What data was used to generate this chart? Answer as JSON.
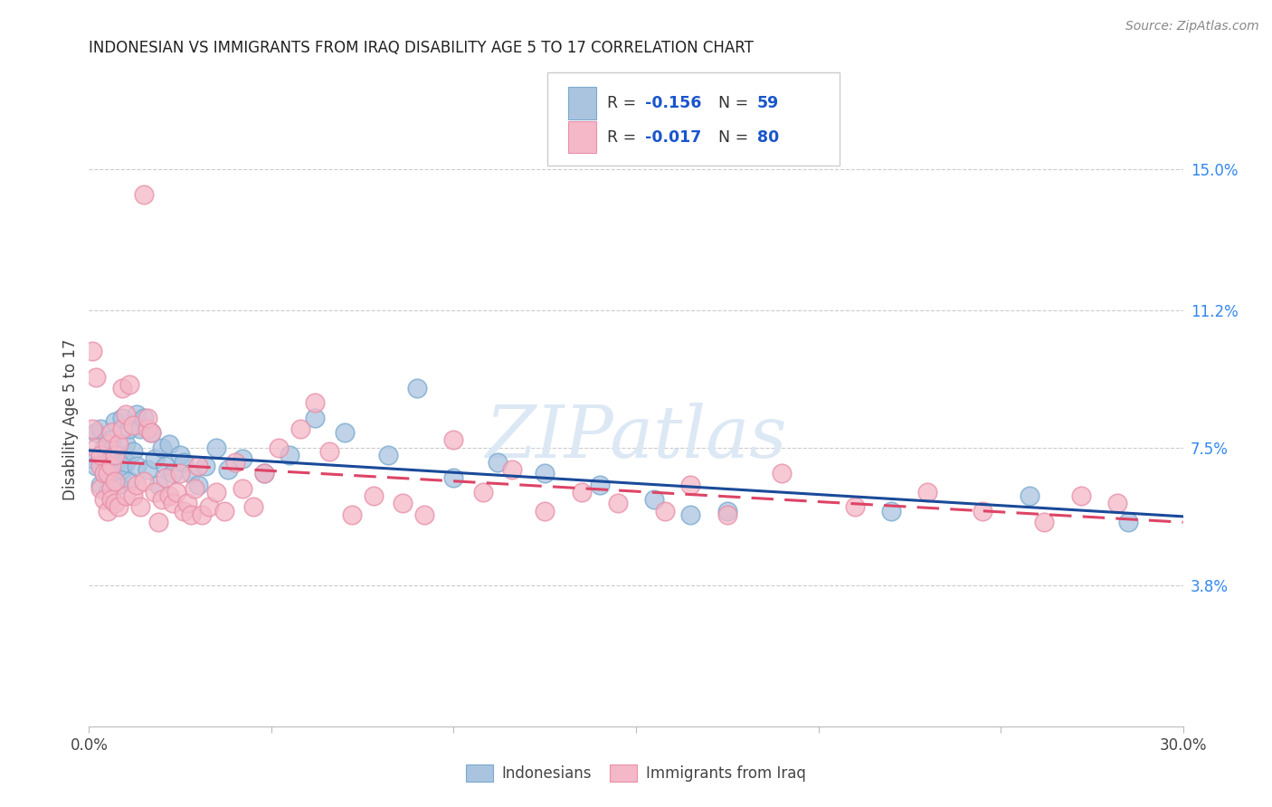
{
  "title": "INDONESIAN VS IMMIGRANTS FROM IRAQ DISABILITY AGE 5 TO 17 CORRELATION CHART",
  "source": "Source: ZipAtlas.com",
  "ylabel": "Disability Age 5 to 17",
  "xlim": [
    0.0,
    0.3
  ],
  "ylim": [
    0.0,
    0.165
  ],
  "xticks": [
    0.0,
    0.05,
    0.1,
    0.15,
    0.2,
    0.25,
    0.3
  ],
  "xticklabels": [
    "0.0%",
    "",
    "",
    "",
    "",
    "",
    "30.0%"
  ],
  "ytick_positions": [
    0.038,
    0.075,
    0.112,
    0.15
  ],
  "ytick_labels": [
    "3.8%",
    "7.5%",
    "11.2%",
    "15.0%"
  ],
  "legend_labels_bottom": [
    "Indonesians",
    "Immigrants from Iraq"
  ],
  "indonesian_color": "#aac4e0",
  "iraq_color": "#f4b8c8",
  "indonesian_edge_color": "#7aaacf",
  "iraq_edge_color": "#e890a8",
  "indonesian_line_color": "#1a4a99",
  "iraq_line_color": "#dd4466",
  "watermark_text": "ZIPatlas",
  "legend_r1": "R = ",
  "legend_v1": "-0.156",
  "legend_n1_label": "N = ",
  "legend_n1": "59",
  "legend_r2": "R = ",
  "legend_v2": "-0.017",
  "legend_n2_label": "N = ",
  "legend_n2": "80",
  "legend_text_color": "#333333",
  "legend_blue_color": "#1a55cc",
  "ytick_color": "#3388ee",
  "indonesian_scatter": [
    [
      0.001,
      0.072
    ],
    [
      0.002,
      0.07
    ],
    [
      0.002,
      0.079
    ],
    [
      0.003,
      0.065
    ],
    [
      0.003,
      0.08
    ],
    [
      0.004,
      0.075
    ],
    [
      0.004,
      0.068
    ],
    [
      0.005,
      0.074
    ],
    [
      0.005,
      0.063
    ],
    [
      0.006,
      0.072
    ],
    [
      0.006,
      0.068
    ],
    [
      0.006,
      0.077
    ],
    [
      0.007,
      0.082
    ],
    [
      0.007,
      0.07
    ],
    [
      0.008,
      0.065
    ],
    [
      0.008,
      0.073
    ],
    [
      0.009,
      0.069
    ],
    [
      0.009,
      0.083
    ],
    [
      0.01,
      0.071
    ],
    [
      0.01,
      0.076
    ],
    [
      0.011,
      0.08
    ],
    [
      0.011,
      0.066
    ],
    [
      0.012,
      0.074
    ],
    [
      0.013,
      0.07
    ],
    [
      0.013,
      0.084
    ],
    [
      0.014,
      0.08
    ],
    [
      0.015,
      0.083
    ],
    [
      0.016,
      0.069
    ],
    [
      0.017,
      0.079
    ],
    [
      0.018,
      0.072
    ],
    [
      0.019,
      0.065
    ],
    [
      0.02,
      0.075
    ],
    [
      0.021,
      0.07
    ],
    [
      0.022,
      0.076
    ],
    [
      0.023,
      0.068
    ],
    [
      0.025,
      0.073
    ],
    [
      0.026,
      0.071
    ],
    [
      0.028,
      0.068
    ],
    [
      0.03,
      0.065
    ],
    [
      0.032,
      0.07
    ],
    [
      0.035,
      0.075
    ],
    [
      0.038,
      0.069
    ],
    [
      0.042,
      0.072
    ],
    [
      0.048,
      0.068
    ],
    [
      0.055,
      0.073
    ],
    [
      0.062,
      0.083
    ],
    [
      0.07,
      0.079
    ],
    [
      0.082,
      0.073
    ],
    [
      0.09,
      0.091
    ],
    [
      0.1,
      0.067
    ],
    [
      0.112,
      0.071
    ],
    [
      0.125,
      0.068
    ],
    [
      0.14,
      0.065
    ],
    [
      0.155,
      0.061
    ],
    [
      0.165,
      0.057
    ],
    [
      0.175,
      0.058
    ],
    [
      0.22,
      0.058
    ],
    [
      0.258,
      0.062
    ],
    [
      0.285,
      0.055
    ]
  ],
  "iraq_scatter": [
    [
      0.001,
      0.101
    ],
    [
      0.001,
      0.08
    ],
    [
      0.002,
      0.094
    ],
    [
      0.002,
      0.075
    ],
    [
      0.003,
      0.07
    ],
    [
      0.003,
      0.064
    ],
    [
      0.003,
      0.073
    ],
    [
      0.004,
      0.068
    ],
    [
      0.004,
      0.061
    ],
    [
      0.005,
      0.068
    ],
    [
      0.005,
      0.058
    ],
    [
      0.005,
      0.076
    ],
    [
      0.006,
      0.064
    ],
    [
      0.006,
      0.061
    ],
    [
      0.006,
      0.07
    ],
    [
      0.006,
      0.079
    ],
    [
      0.007,
      0.06
    ],
    [
      0.007,
      0.066
    ],
    [
      0.007,
      0.073
    ],
    [
      0.008,
      0.076
    ],
    [
      0.008,
      0.059
    ],
    [
      0.009,
      0.091
    ],
    [
      0.009,
      0.08
    ],
    [
      0.01,
      0.084
    ],
    [
      0.01,
      0.062
    ],
    [
      0.011,
      0.092
    ],
    [
      0.012,
      0.062
    ],
    [
      0.012,
      0.081
    ],
    [
      0.013,
      0.065
    ],
    [
      0.014,
      0.059
    ],
    [
      0.015,
      0.066
    ],
    [
      0.015,
      0.143
    ],
    [
      0.016,
      0.08
    ],
    [
      0.016,
      0.083
    ],
    [
      0.017,
      0.079
    ],
    [
      0.018,
      0.063
    ],
    [
      0.019,
      0.055
    ],
    [
      0.02,
      0.061
    ],
    [
      0.021,
      0.067
    ],
    [
      0.022,
      0.062
    ],
    [
      0.023,
      0.06
    ],
    [
      0.024,
      0.063
    ],
    [
      0.025,
      0.068
    ],
    [
      0.026,
      0.058
    ],
    [
      0.027,
      0.06
    ],
    [
      0.028,
      0.057
    ],
    [
      0.029,
      0.064
    ],
    [
      0.03,
      0.07
    ],
    [
      0.031,
      0.057
    ],
    [
      0.033,
      0.059
    ],
    [
      0.035,
      0.063
    ],
    [
      0.037,
      0.058
    ],
    [
      0.04,
      0.071
    ],
    [
      0.042,
      0.064
    ],
    [
      0.045,
      0.059
    ],
    [
      0.048,
      0.068
    ],
    [
      0.052,
      0.075
    ],
    [
      0.058,
      0.08
    ],
    [
      0.062,
      0.087
    ],
    [
      0.066,
      0.074
    ],
    [
      0.072,
      0.057
    ],
    [
      0.078,
      0.062
    ],
    [
      0.086,
      0.06
    ],
    [
      0.092,
      0.057
    ],
    [
      0.1,
      0.077
    ],
    [
      0.108,
      0.063
    ],
    [
      0.116,
      0.069
    ],
    [
      0.125,
      0.058
    ],
    [
      0.135,
      0.063
    ],
    [
      0.145,
      0.06
    ],
    [
      0.158,
      0.058
    ],
    [
      0.165,
      0.065
    ],
    [
      0.175,
      0.057
    ],
    [
      0.19,
      0.068
    ],
    [
      0.21,
      0.059
    ],
    [
      0.23,
      0.063
    ],
    [
      0.245,
      0.058
    ],
    [
      0.262,
      0.055
    ],
    [
      0.272,
      0.062
    ],
    [
      0.282,
      0.06
    ]
  ]
}
